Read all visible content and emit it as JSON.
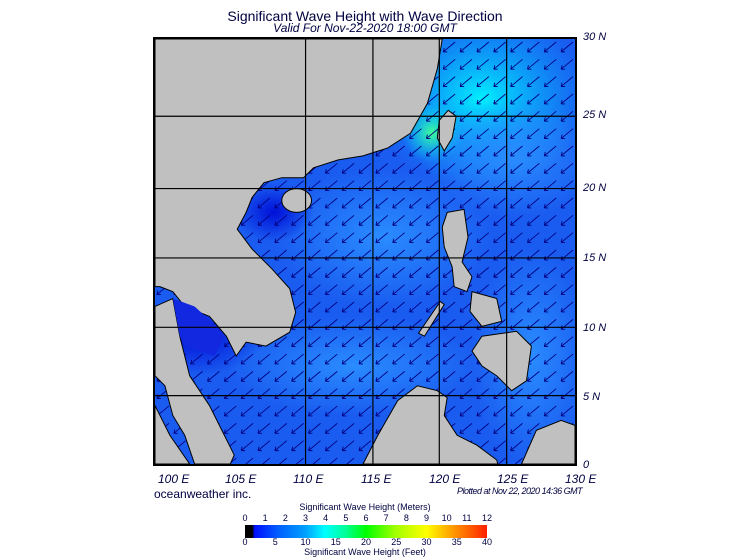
{
  "header": {
    "title": "Significant Wave Height with Wave Direction",
    "subtitle": "Valid For Nov-22-2020 18:00 GMT"
  },
  "axes": {
    "lon_labels": [
      "100 E",
      "105 E",
      "110 E",
      "115 E",
      "120 E",
      "125 E",
      "130 E"
    ],
    "lat_labels": [
      "30 N",
      "25 N",
      "20 N",
      "15 N",
      "10 N",
      "5 N",
      "0"
    ]
  },
  "footer": {
    "brand": "oceanweather inc.",
    "plotted": "Plotted at Nov 22, 2020 14:36 GMT"
  },
  "legend": {
    "meters_title": "Significant Wave Height (Meters)",
    "feet_title": "Significant Wave Height (Feet)",
    "meters_ticks": [
      "0",
      "1",
      "2",
      "3",
      "4",
      "5",
      "6",
      "7",
      "8",
      "9",
      "10",
      "11",
      "12"
    ],
    "feet_ticks": [
      "0",
      "5",
      "10",
      "15",
      "20",
      "25",
      "30",
      "35",
      "40"
    ]
  },
  "colors": {
    "ocean": "#1a5cf0",
    "land": "#c0c0c0",
    "arrow": "#000080",
    "high": "#00ffff",
    "low": "#0018e0"
  },
  "wave_direction": "from northeast"
}
